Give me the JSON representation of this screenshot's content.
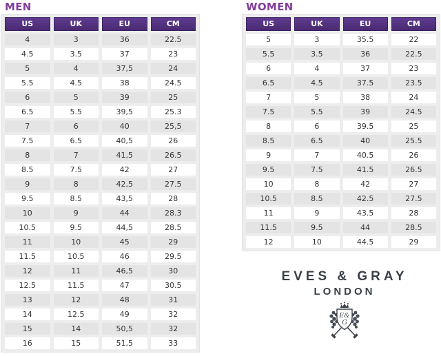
{
  "colors": {
    "title_purple": "#833f9b",
    "header_purple_top": "#5e3b90",
    "header_purple_bottom": "#4a2a72",
    "header_border": "#3d2263",
    "header_text": "#ffffff",
    "row_alt": "#e4e4e4",
    "row_white": "#ffffff",
    "table_bg": "#ededed",
    "table_border": "#e2e2e2",
    "cell_text": "#333333",
    "logo_text": "#3a4049"
  },
  "men_table": {
    "title": "MEN",
    "headers": [
      "US",
      "UK",
      "EU",
      "CM"
    ],
    "rows": [
      [
        "4",
        "3",
        "36",
        "22.5"
      ],
      [
        "4.5",
        "3.5",
        "37",
        "23"
      ],
      [
        "5",
        "4",
        "37,5",
        "24"
      ],
      [
        "5.5",
        "4.5",
        "38",
        "24.5"
      ],
      [
        "6",
        "5",
        "39",
        "25"
      ],
      [
        "6.5",
        "5.5",
        "39,5",
        "25.3"
      ],
      [
        "7",
        "6",
        "40",
        "25,5"
      ],
      [
        "7.5",
        "6.5",
        "40,5",
        "26"
      ],
      [
        "8",
        "7",
        "41,5",
        "26.5"
      ],
      [
        "8.5",
        "7.5",
        "42",
        "27"
      ],
      [
        "9",
        "8",
        "42,5",
        "27.5"
      ],
      [
        "9.5",
        "8.5",
        "43,5",
        "28"
      ],
      [
        "10",
        "9",
        "44",
        "28.3"
      ],
      [
        "10.5",
        "9.5",
        "44,5",
        "28.5"
      ],
      [
        "11",
        "10",
        "45",
        "29"
      ],
      [
        "11.5",
        "10.5",
        "46",
        "29.5"
      ],
      [
        "12",
        "11",
        "46,5",
        "30"
      ],
      [
        "12.5",
        "11.5",
        "47",
        "30.5"
      ],
      [
        "13",
        "12",
        "48",
        "31"
      ],
      [
        "14",
        "12.5",
        "49",
        "32"
      ],
      [
        "15",
        "14",
        "50,5",
        "32"
      ],
      [
        "16",
        "15",
        "51,5",
        "33"
      ]
    ]
  },
  "women_table": {
    "title": "WOMEN",
    "headers": [
      "US",
      "UK",
      "EU",
      "CM"
    ],
    "rows": [
      [
        "5",
        "3",
        "35.5",
        "22"
      ],
      [
        "5.5",
        "3.5",
        "36",
        "22.5"
      ],
      [
        "6",
        "4",
        "37",
        "23"
      ],
      [
        "6.5",
        "4.5",
        "37.5",
        "23.5"
      ],
      [
        "7",
        "5",
        "38",
        "24"
      ],
      [
        "7.5",
        "5.5",
        "39",
        "24.5"
      ],
      [
        "8",
        "6",
        "39.5",
        "25"
      ],
      [
        "8.5",
        "6.5",
        "40",
        "25.5"
      ],
      [
        "9",
        "7",
        "40.5",
        "26"
      ],
      [
        "9.5",
        "7.5",
        "41.5",
        "26.5"
      ],
      [
        "10",
        "8",
        "42",
        "27"
      ],
      [
        "10.5",
        "8.5",
        "42.5",
        "27.5"
      ],
      [
        "11",
        "9",
        "43.5",
        "28"
      ],
      [
        "11.5",
        "9.5",
        "44",
        "28.5"
      ],
      [
        "12",
        "10",
        "44.5",
        "29"
      ]
    ]
  },
  "logo": {
    "brand": "EVES & GRAY",
    "city": "LONDON",
    "monogram_top": "E&",
    "monogram_bottom": "G"
  }
}
